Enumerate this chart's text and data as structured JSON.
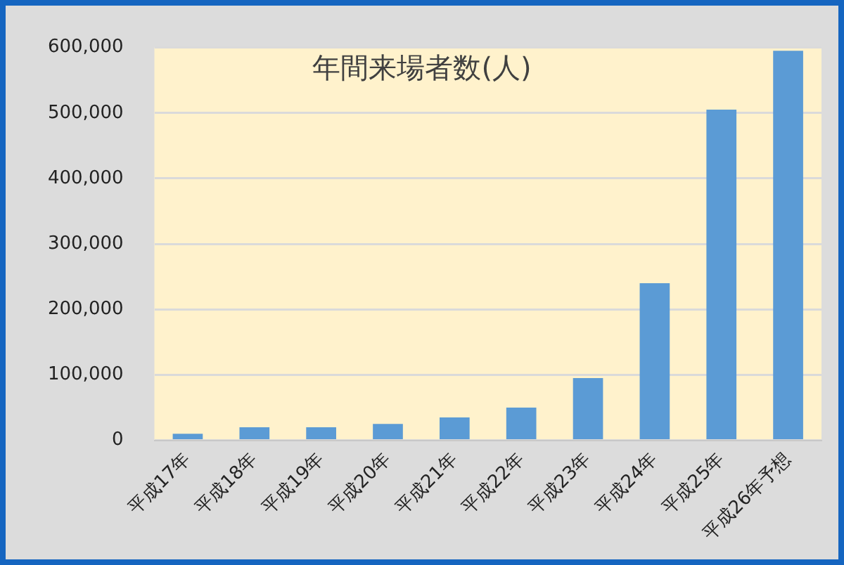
{
  "chart_data": {
    "type": "bar",
    "title": "年間来場者数(人)",
    "categories": [
      "平成17年",
      "平成18年",
      "平成19年",
      "平成20年",
      "平成21年",
      "平成22年",
      "平成23年",
      "平成24年",
      "平成25年",
      "平成26年予想"
    ],
    "values": [
      10000,
      20000,
      20000,
      25000,
      35000,
      50000,
      95000,
      240000,
      505000,
      595000
    ],
    "color": "#5b9bd5",
    "ylim": [
      0,
      600000
    ],
    "yticks": [
      0,
      {
        "value": 100000,
        "label": "100,000"
      },
      {
        "value": 200000,
        "label": "200,000"
      },
      {
        "value": 300000,
        "label": "300,000"
      },
      {
        "value": 400000,
        "label": "400,000"
      },
      {
        "value": 500000,
        "label": "500,000"
      },
      {
        "value": 600000,
        "label": "600,000"
      }
    ],
    "grid": "y"
  }
}
